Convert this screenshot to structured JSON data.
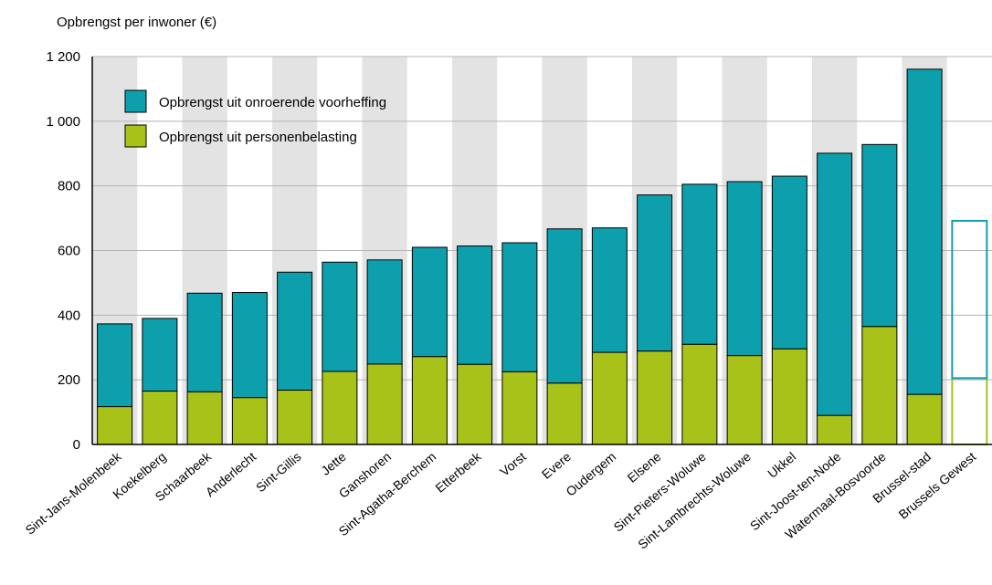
{
  "chart_data": {
    "type": "bar",
    "stacked": true,
    "title": "Opbrengst per inwoner (€)",
    "xlabel": "",
    "ylabel": "",
    "ylim": [
      0,
      1200
    ],
    "yticks": [
      0,
      200,
      400,
      600,
      800,
      1000,
      1200
    ],
    "ytick_labels": [
      "0",
      "200",
      "400",
      "600",
      "800",
      "1 000",
      "1 200"
    ],
    "grid": "horizontal",
    "alternating_column_shading": true,
    "legend_position": "top-left",
    "categories": [
      "Sint-Jans-Molenbeek",
      "Koekelberg",
      "Schaarbeek",
      "Anderlecht",
      "Sint-Gillis",
      "Jette",
      "Ganshoren",
      "Sint-Agatha-Berchem",
      "Etterbeek",
      "Vorst",
      "Evere",
      "Oudergem",
      "Elsene",
      "Sint-Pieters-Woluwe",
      "Sint-Lambrechts-Woluwe",
      "Ukkel",
      "Sint-Joost-ten-Node",
      "Watermaal-Bosvoorde",
      "Brussel-stad",
      "Brussels Gewest"
    ],
    "series": [
      {
        "name": "Opbrengst uit personenbelasting",
        "color": "#a8c21a",
        "values": [
          117,
          165,
          163,
          145,
          168,
          226,
          249,
          272,
          248,
          225,
          190,
          285,
          289,
          310,
          275,
          296,
          90,
          365,
          155,
          205
        ]
      },
      {
        "name": "Opbrengst uit onroerende voorheffing",
        "color": "#0e9fad",
        "values": [
          256,
          225,
          305,
          325,
          365,
          338,
          322,
          338,
          366,
          399,
          477,
          385,
          483,
          495,
          538,
          534,
          811,
          563,
          1006,
          487
        ]
      }
    ],
    "outlined_categories": [
      "Brussels Gewest"
    ]
  },
  "colors": {
    "gridline": "#b4b4b4",
    "band": "#e3e3e3",
    "axis": "#000000",
    "bar_outline": "#000000"
  }
}
